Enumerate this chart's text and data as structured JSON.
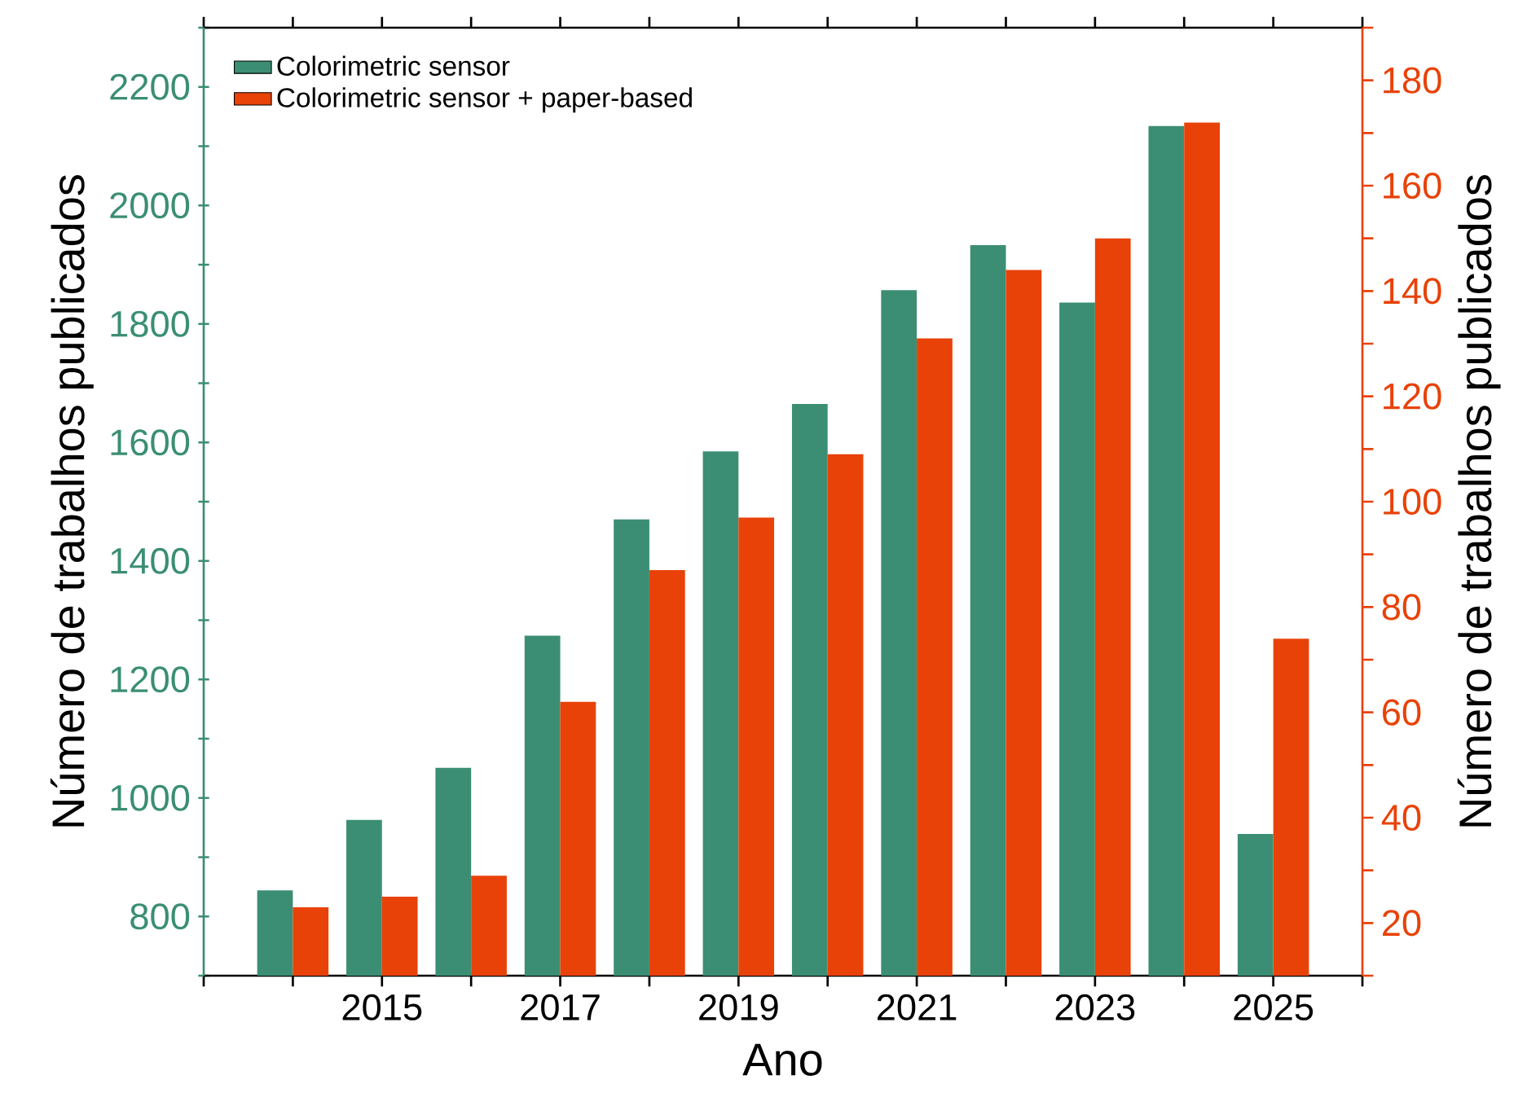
{
  "chart_data": {
    "type": "bar",
    "xlabel": "Ano",
    "ylabel": "Número de trabalhos publicados",
    "y2label": "Número de trabalhos publicados",
    "x": [
      2014,
      2015,
      2016,
      2017,
      2018,
      2019,
      2020,
      2021,
      2022,
      2023,
      2024,
      2025
    ],
    "series": [
      {
        "name": "Colorimetric sensor",
        "color": "#3b8e73",
        "values": [
          844,
          963,
          1051,
          1274,
          1470,
          1585,
          1665,
          1857,
          1933,
          1836,
          2134,
          939
        ]
      },
      {
        "name": "Colorimetric sensor + paper-based",
        "color": "#e84208",
        "axis": "y2",
        "values": [
          23,
          25,
          29,
          62,
          87,
          97,
          109,
          131,
          144,
          150,
          172,
          74
        ]
      }
    ],
    "xlim": [
      2013,
      2026
    ],
    "xticks": [
      {
        "value": 2013,
        "label": null
      },
      {
        "value": 2014,
        "label": null
      },
      2015,
      {
        "value": 2016,
        "label": null
      },
      2017,
      {
        "value": 2018,
        "label": null
      },
      2019,
      {
        "value": 2020,
        "label": null
      },
      2021,
      {
        "value": 2022,
        "label": null
      },
      2023,
      {
        "value": 2024,
        "label": null
      },
      2025,
      {
        "value": 2026,
        "label": null
      }
    ],
    "ylim": [
      700,
      2300
    ],
    "yticks": [
      {
        "value": 700,
        "label": null
      },
      800,
      {
        "value": 900,
        "label": null
      },
      1000,
      {
        "value": 1100,
        "label": null
      },
      1200,
      {
        "value": 1300,
        "label": null
      },
      1400,
      {
        "value": 1500,
        "label": null
      },
      1600,
      {
        "value": 1700,
        "label": null
      },
      1800,
      {
        "value": 1900,
        "label": null
      },
      2000,
      {
        "value": 2100,
        "label": null
      },
      2200,
      {
        "value": 2300,
        "label": null
      }
    ],
    "y2lim": [
      10,
      190
    ],
    "y2ticks": [
      {
        "value": 10,
        "label": null
      },
      20,
      {
        "value": 30,
        "label": null
      },
      40,
      {
        "value": 50,
        "label": null
      },
      60,
      {
        "value": 70,
        "label": null
      },
      80,
      {
        "value": 90,
        "label": null
      },
      100,
      {
        "value": 110,
        "label": null
      },
      120,
      {
        "value": 130,
        "label": null
      },
      140,
      {
        "value": 150,
        "label": null
      },
      160,
      {
        "value": 170,
        "label": null
      },
      180,
      {
        "value": 190,
        "label": null
      }
    ],
    "legend": "top left",
    "grid": false
  }
}
